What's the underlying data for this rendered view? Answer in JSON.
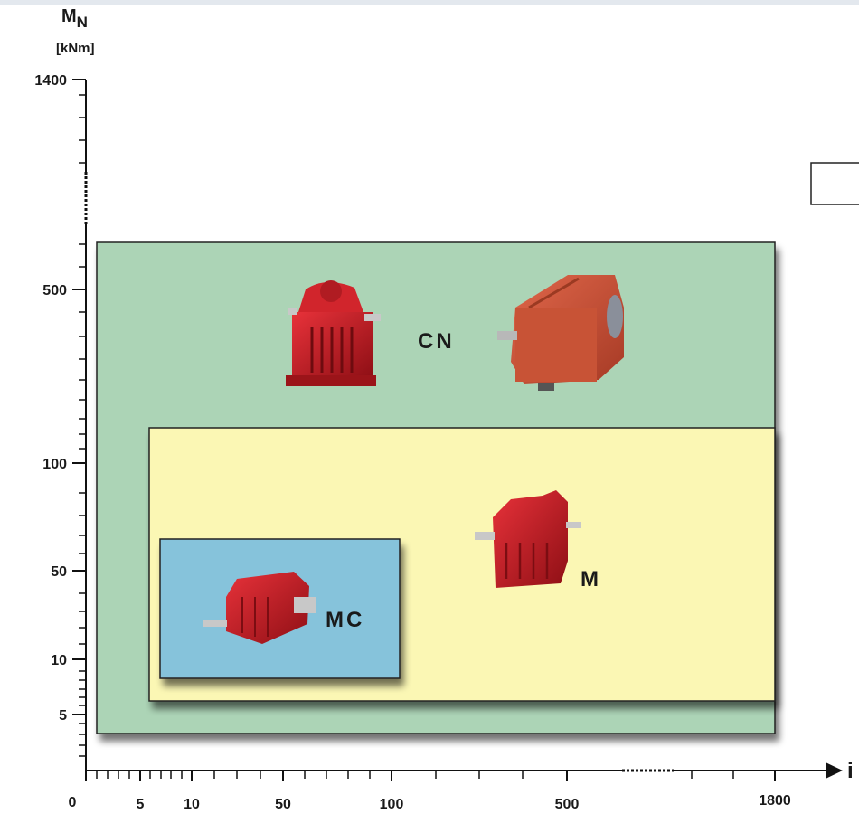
{
  "axes": {
    "y_symbol": "M",
    "y_subscript": "N",
    "y_unit": "[kNm]",
    "x_symbol": "i",
    "y_ticks": [
      "1400",
      "500",
      "100",
      "50",
      "10",
      "5"
    ],
    "x_ticks": [
      "0",
      "5",
      "10",
      "50",
      "100",
      "500",
      "1800"
    ]
  },
  "zones": {
    "cn": {
      "label": "CN",
      "color": "#acd4b6"
    },
    "m": {
      "label": "M",
      "color": "#fbf7b4"
    },
    "mc": {
      "label": "MC",
      "color": "#86c3db"
    }
  },
  "gear_color": "#c41b22"
}
